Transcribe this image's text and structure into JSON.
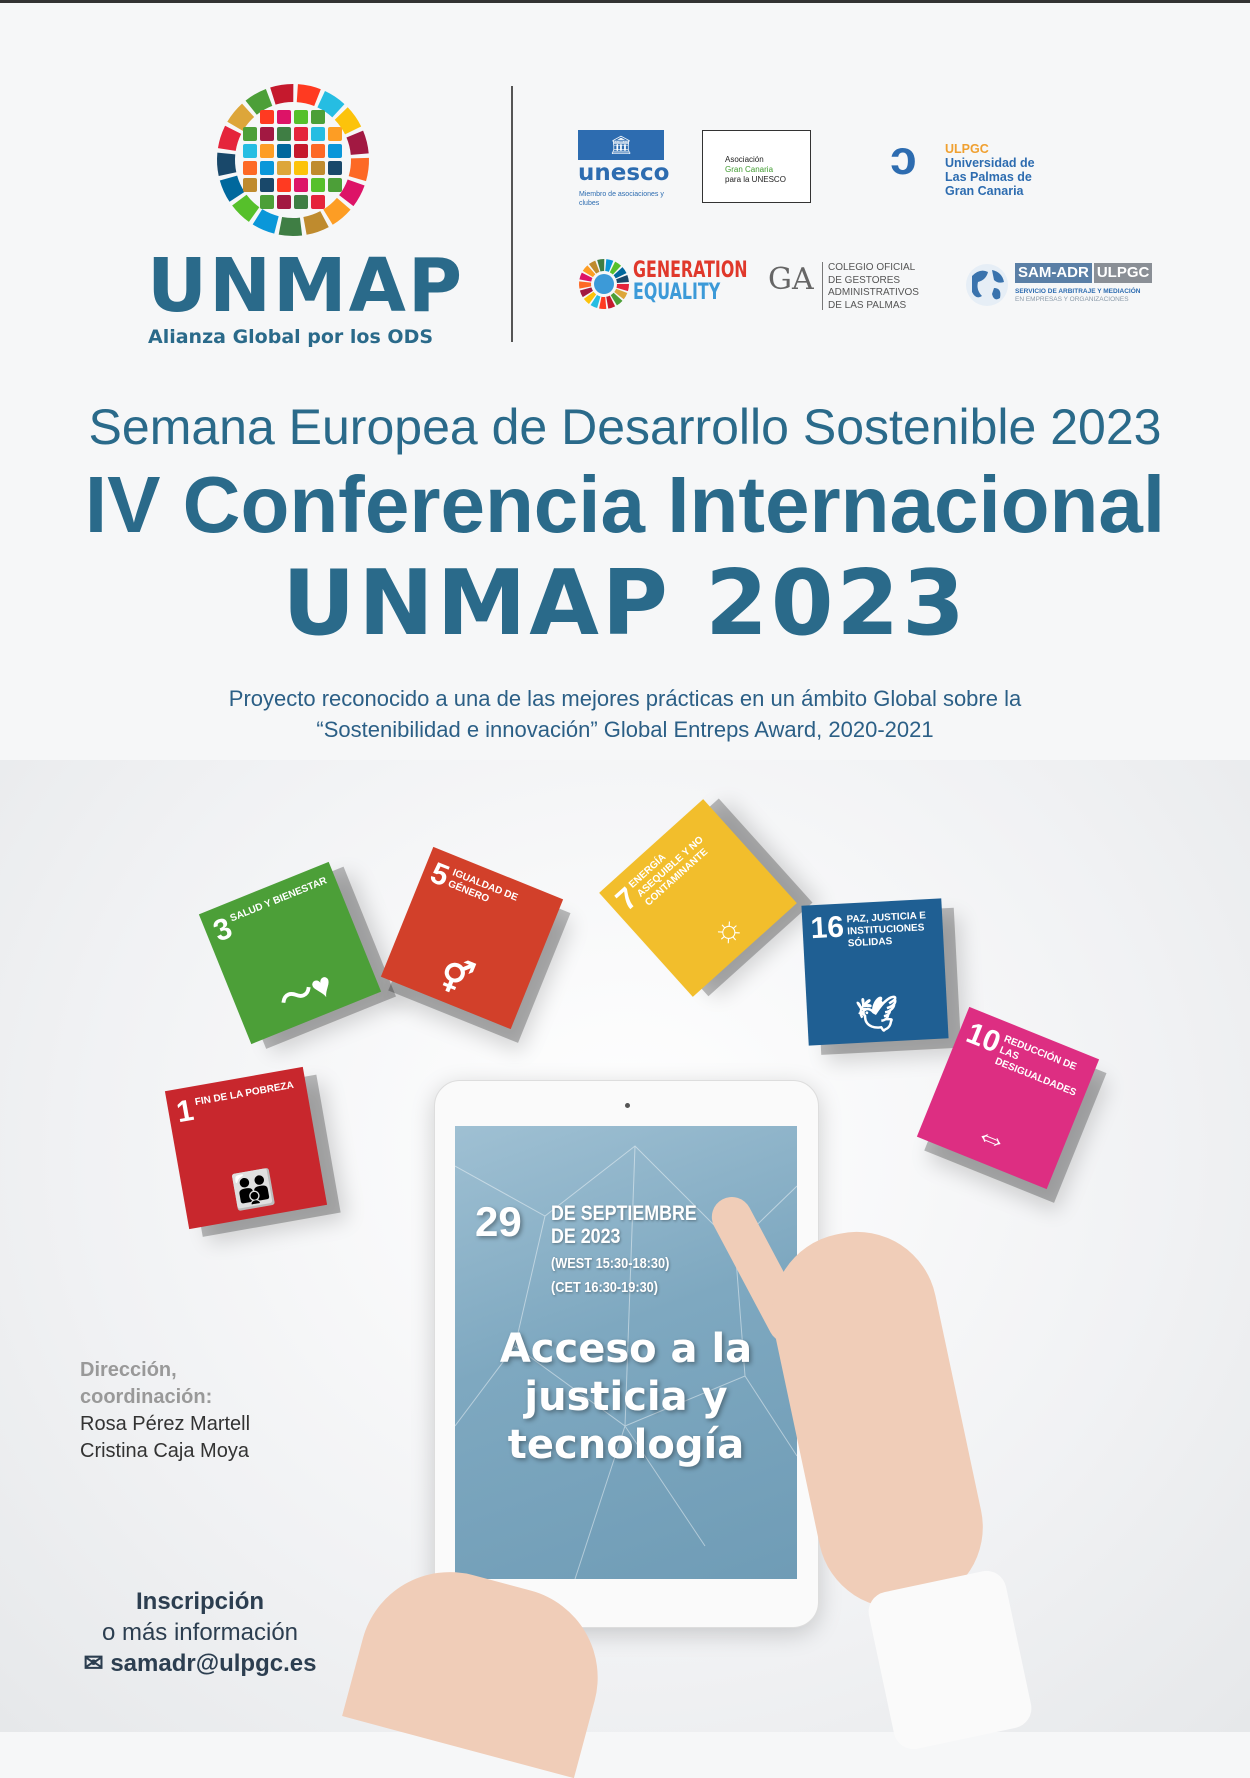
{
  "logo": {
    "name": "UNMAP",
    "tagline": "Alianza Global por los ODS"
  },
  "partners": {
    "unesco": {
      "name": "unesco",
      "sub": "Miembro de asociaciones y clubes"
    },
    "asociacion": {
      "line1": "Asociación",
      "line2": "Gran Canaria",
      "line3": "para la UNESCO"
    },
    "ulpgc": {
      "abbr": "ULPGC",
      "line1": "Universidad de",
      "line2": "Las Palmas de",
      "line3": "Gran Canaria"
    },
    "generation_equality": {
      "line1": "GENERATION",
      "line2": "EQUALITY"
    },
    "colegio": {
      "mark": "GA",
      "lines": [
        "COLEGIO OFICIAL",
        "DE GESTORES",
        "ADMINISTRATIVOS",
        "DE LAS PALMAS"
      ]
    },
    "sam_adr": {
      "a": "SAM-ADR",
      "b": "ULPGC",
      "sub1": "SERVICIO DE ARBITRAJE Y MEDIACIÓN",
      "sub2": "EN EMPRESAS Y ORGANIZACIONES"
    }
  },
  "titles": {
    "line1": "Semana Europea de Desarrollo Sostenible 2023",
    "line2": "IV Conferencia Internacional",
    "line3": "UNMAP 2023",
    "subtitle1": "Proyecto reconocido a una de las mejores prácticas en un ámbito Global sobre la",
    "subtitle2": "“Sostenibilidad e innovación” Global Entreps Award, 2020-2021"
  },
  "sdg_cubes": [
    {
      "number": "3",
      "label": "SALUD Y BIENESTAR",
      "color": "#4c9f38",
      "icon": "heartbeat-icon"
    },
    {
      "number": "5",
      "label": "IGUALDAD DE GÉNERO",
      "color": "#d2402a",
      "icon": "gender-equality-icon"
    },
    {
      "number": "7",
      "label": "ENERGÍA ASEQUIBLE Y NO CONTAMINANTE",
      "color": "#f2be2c",
      "icon": "sun-icon"
    },
    {
      "number": "16",
      "label": "PAZ, JUSTICIA E INSTITUCIONES SÓLIDAS",
      "color": "#1f5f93",
      "icon": "dove-gavel-icon"
    },
    {
      "number": "10",
      "label": "REDUCCIÓN DE LAS DESIGUALDADES",
      "color": "#dd2e82",
      "icon": "equality-arrows-icon"
    },
    {
      "number": "1",
      "label": "FIN DE LA POBREZA",
      "color": "#c8272d",
      "icon": "family-icon"
    }
  ],
  "event": {
    "day": "29",
    "month_line1": "DE SEPTIEMBRE",
    "month_line2": "DE 2023",
    "time_west": "(WEST 15:30-18:30)",
    "time_cet": "(CET 16:30-19:30)",
    "topic_line1": "Acceso a la",
    "topic_line2": "justicia y",
    "topic_line3": "tecnología"
  },
  "direction": {
    "heading1": "Dirección,",
    "heading2": "coordinación:",
    "person1": "Rosa Pérez Martell",
    "person2": "Cristina Caja Moya"
  },
  "registration": {
    "line1": "Inscripción",
    "line2": "o más información",
    "email": "samadr@ulpgc.es",
    "icon": "envelope-icon"
  },
  "colors": {
    "primary": "#2a6a8a",
    "subtitle": "#2b5f86"
  }
}
